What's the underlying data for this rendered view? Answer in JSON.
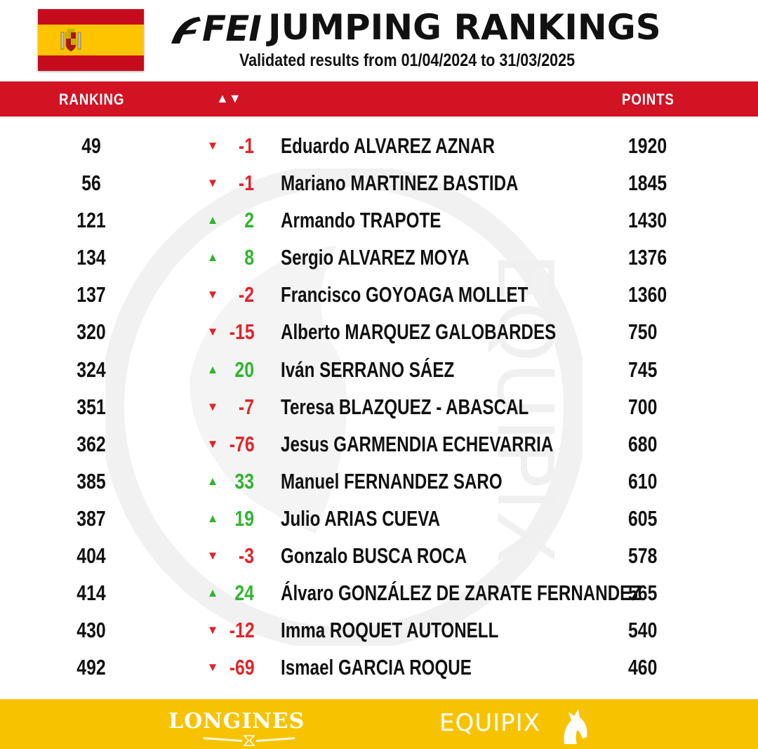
{
  "colors": {
    "header_red": "#d11323",
    "footer_yellow": "#f7c300",
    "flag_red": "#c60b1e",
    "flag_yellow": "#ffc400",
    "up_green": "#2fb52f",
    "down_red": "#e0242b"
  },
  "header": {
    "fei_logo": "FEI",
    "title": "JUMPING RANKINGS",
    "subtitle": "Validated results from 01/04/2024 to 31/03/2025",
    "flag_icon": "spain-flag-icon"
  },
  "columns": {
    "ranking": "RANKING",
    "change": "▲▼",
    "points": "POINTS"
  },
  "rows": [
    {
      "rank": "49",
      "dir": "down",
      "change": "-1",
      "name": "Eduardo ALVAREZ AZNAR",
      "points": "1920"
    },
    {
      "rank": "56",
      "dir": "down",
      "change": "-1",
      "name": "Mariano MARTINEZ BASTIDA",
      "points": "1845"
    },
    {
      "rank": "121",
      "dir": "up",
      "change": "2",
      "name": "Armando TRAPOTE",
      "points": "1430"
    },
    {
      "rank": "134",
      "dir": "up",
      "change": "8",
      "name": "Sergio ALVAREZ MOYA",
      "points": "1376"
    },
    {
      "rank": "137",
      "dir": "down",
      "change": "-2",
      "name": "Francisco GOYOAGA MOLLET",
      "points": "1360"
    },
    {
      "rank": "320",
      "dir": "down",
      "change": "-15",
      "name": "Alberto MARQUEZ GALOBARDES",
      "points": "750"
    },
    {
      "rank": "324",
      "dir": "up",
      "change": "20",
      "name": "Iván SERRANO SÁEZ",
      "points": "745"
    },
    {
      "rank": "351",
      "dir": "down",
      "change": "-7",
      "name": "Teresa BLAZQUEZ - ABASCAL",
      "points": "700"
    },
    {
      "rank": "362",
      "dir": "down",
      "change": "-76",
      "name": "Jesus GARMENDIA ECHEVARRIA",
      "points": "680"
    },
    {
      "rank": "385",
      "dir": "up",
      "change": "33",
      "name": "Manuel FERNANDEZ SARO",
      "points": "610"
    },
    {
      "rank": "387",
      "dir": "up",
      "change": "19",
      "name": "Julio ARIAS CUEVA",
      "points": "605"
    },
    {
      "rank": "404",
      "dir": "down",
      "change": "-3",
      "name": "Gonzalo BUSCA ROCA",
      "points": "578"
    },
    {
      "rank": "414",
      "dir": "up",
      "change": "24",
      "name": "Álvaro GONZÁLEZ DE ZARATE FERNANDEZ",
      "points": "565"
    },
    {
      "rank": "430",
      "dir": "down",
      "change": "-12",
      "name": "Imma ROQUET AUTONELL",
      "points": "540"
    },
    {
      "rank": "492",
      "dir": "down",
      "change": "-69",
      "name": "Ismael GARCIA ROQUE",
      "points": "460"
    }
  ],
  "footer": {
    "sponsor": "LONGINES",
    "brand": "EQUIPIX",
    "brand_icon": "horse-head-icon",
    "watermark": "EQUIPIX"
  }
}
